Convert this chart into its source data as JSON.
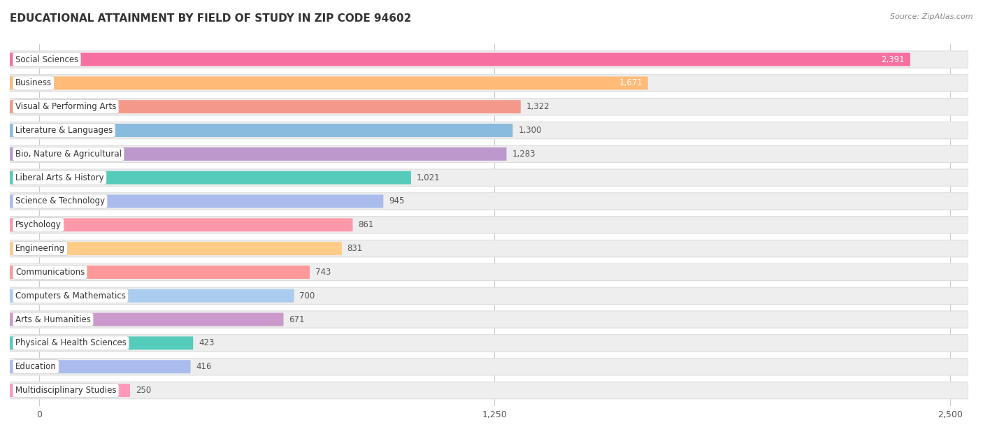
{
  "title": "EDUCATIONAL ATTAINMENT BY FIELD OF STUDY IN ZIP CODE 94602",
  "source": "Source: ZipAtlas.com",
  "categories": [
    "Social Sciences",
    "Business",
    "Visual & Performing Arts",
    "Literature & Languages",
    "Bio, Nature & Agricultural",
    "Liberal Arts & History",
    "Science & Technology",
    "Psychology",
    "Engineering",
    "Communications",
    "Computers & Mathematics",
    "Arts & Humanities",
    "Physical & Health Sciences",
    "Education",
    "Multidisciplinary Studies"
  ],
  "values": [
    2391,
    1671,
    1322,
    1300,
    1283,
    1021,
    945,
    861,
    831,
    743,
    700,
    671,
    423,
    416,
    250
  ],
  "bar_colors": [
    "#F76FA0",
    "#FFBB77",
    "#F4998A",
    "#88BBDD",
    "#BB99CC",
    "#55CCBB",
    "#AABBEE",
    "#FF99AA",
    "#FFCC88",
    "#FF9999",
    "#AACCEE",
    "#CC99CC",
    "#55CCBB",
    "#AABBEE",
    "#FF99BB"
  ],
  "xlim_max": 2500,
  "xticks": [
    0,
    1250,
    2500
  ],
  "background_color": "#ffffff",
  "track_color": "#eeeeee",
  "track_border_color": "#dddddd"
}
